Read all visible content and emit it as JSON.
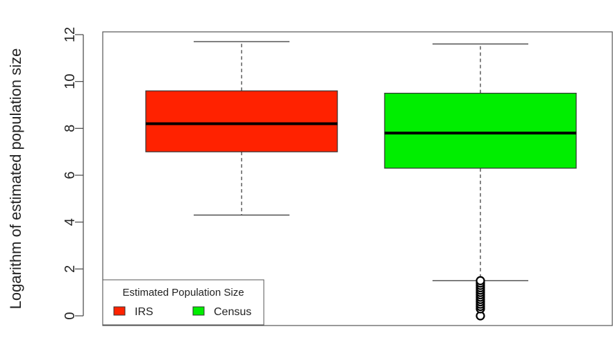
{
  "chart_data": {
    "type": "boxplot",
    "title": "",
    "xlabel": "",
    "ylabel": "Logarithm of estimated population size",
    "ylim": [
      0,
      12
    ],
    "yticks": [
      0,
      2,
      4,
      6,
      8,
      10,
      12
    ],
    "grid": false,
    "series": [
      {
        "name": "IRS",
        "color": "#ff2200",
        "whisker_low": 4.3,
        "q1": 7.0,
        "median": 8.2,
        "q3": 9.6,
        "whisker_high": 11.7,
        "outliers": []
      },
      {
        "name": "Census",
        "color": "#00ee00",
        "whisker_low": 1.5,
        "q1": 6.3,
        "median": 7.8,
        "q3": 9.5,
        "whisker_high": 11.6,
        "outliers": [
          0.0,
          0.3,
          0.4,
          0.5,
          0.6,
          0.7,
          0.8,
          0.9,
          1.0,
          1.1,
          1.2,
          1.3,
          1.4,
          1.5
        ]
      }
    ],
    "legend": {
      "title": "Estimated Population Size",
      "placement": "bottom-left",
      "entries": [
        {
          "label": "IRS",
          "color": "#ff2200"
        },
        {
          "label": "Census",
          "color": "#00ee00"
        }
      ]
    }
  }
}
